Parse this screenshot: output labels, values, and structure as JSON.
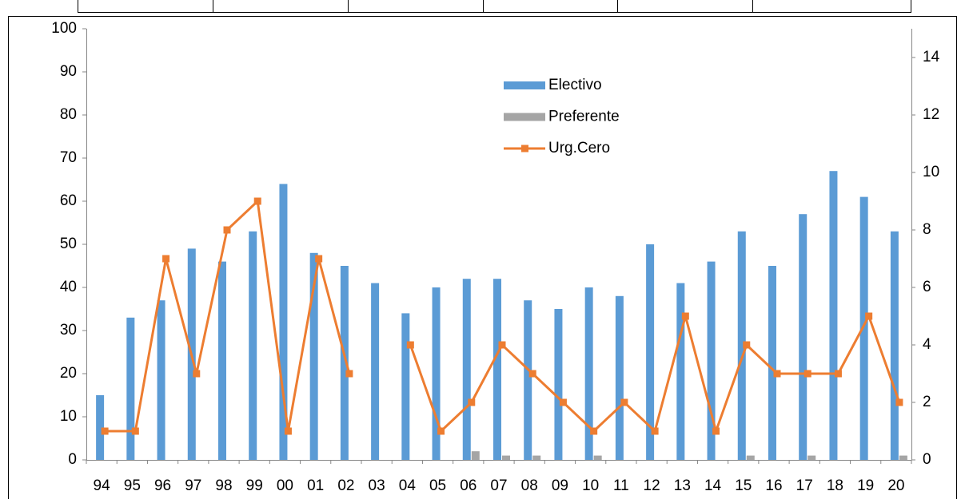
{
  "chart_data": {
    "type": "bar-line",
    "categories": [
      "94",
      "95",
      "96",
      "97",
      "98",
      "99",
      "00",
      "01",
      "02",
      "03",
      "04",
      "05",
      "06",
      "07",
      "08",
      "09",
      "10",
      "11",
      "12",
      "13",
      "14",
      "15",
      "16",
      "17",
      "18",
      "19",
      "20"
    ],
    "series": [
      {
        "name": "Electivo",
        "type": "bar",
        "color": "#5b9bd5",
        "values": [
          15,
          33,
          37,
          49,
          46,
          53,
          64,
          48,
          45,
          41,
          34,
          40,
          42,
          42,
          37,
          35,
          40,
          38,
          50,
          41,
          46,
          53,
          45,
          57,
          67,
          61,
          53
        ]
      },
      {
        "name": "Preferente",
        "type": "bar",
        "color": "#a5a5a5",
        "values": [
          0,
          0,
          0,
          0,
          0,
          0,
          0,
          0,
          0,
          0,
          0,
          0,
          2,
          1,
          1,
          0,
          1,
          0,
          0,
          0,
          0,
          1,
          0,
          1,
          0,
          0,
          1
        ]
      },
      {
        "name": "Urg.Cero",
        "type": "line",
        "axis": "y2",
        "color": "#ed7d31",
        "values": [
          1,
          1,
          7,
          3,
          8,
          9,
          1,
          7,
          3,
          null,
          4,
          1,
          2,
          4,
          3,
          2,
          1,
          2,
          1,
          5,
          1,
          4,
          3,
          3,
          3,
          5,
          2
        ]
      }
    ],
    "ylim": [
      0,
      100
    ],
    "yticks": [
      0,
      10,
      20,
      30,
      40,
      50,
      60,
      70,
      80,
      90,
      100
    ],
    "y2lim": [
      0,
      15
    ],
    "y2ticks": [
      0,
      2,
      4,
      6,
      8,
      10,
      12,
      14
    ],
    "grid": false
  }
}
